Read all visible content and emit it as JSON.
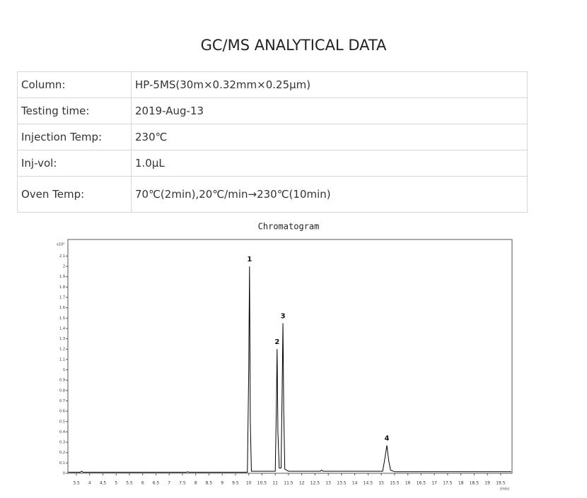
{
  "header": {
    "title": "GC/MS ANALYTICAL DATA"
  },
  "table": {
    "rows": [
      [
        "Column:",
        "HP-5MS(30m×0.32mm×0.25μm)"
      ],
      [
        "Testing time:",
        "2019-Aug-13"
      ],
      [
        "Injection Temp:",
        "230℃"
      ],
      [
        "Inj-vol:",
        "1.0μL"
      ],
      [
        "Oven Temp:",
        "70℃(2min),20℃/min→230℃(10min)"
      ]
    ]
  },
  "chart_data": {
    "type": "line",
    "title": "Chromatogram",
    "y_unit": "x10⁶",
    "x_unit": "(min)",
    "color": "#000000",
    "xlim": [
      3.18,
      19.93
    ],
    "ylim": [
      0,
      2.26
    ],
    "xticks": [
      3.5,
      4,
      4.5,
      5,
      5.5,
      6,
      6.5,
      7,
      7.5,
      8,
      8.5,
      9,
      9.5,
      10,
      10.5,
      11,
      11.5,
      12,
      12.5,
      13,
      13.5,
      14,
      14.5,
      15,
      15.5,
      16,
      16.5,
      17,
      17.5,
      18,
      18.5,
      19,
      19.5
    ],
    "yticks": [
      0,
      0.1,
      0.2,
      0.3,
      0.4,
      0.5,
      0.6,
      0.7,
      0.8,
      0.9,
      1,
      1.1,
      1.2,
      1.3,
      1.4,
      1.5,
      1.6,
      1.7,
      1.8,
      1.9,
      2,
      2.1
    ],
    "x": [
      3.2,
      3.65,
      3.7,
      3.75,
      7.65,
      7.7,
      7.75,
      9.95,
      10.0,
      10.03,
      10.06,
      10.1,
      11.0,
      11.04,
      11.07,
      11.1,
      11.15,
      11.22,
      11.26,
      11.29,
      11.32,
      11.36,
      11.5,
      12.7,
      12.75,
      12.8,
      15.05,
      15.12,
      15.21,
      15.28,
      15.35,
      15.5,
      19.9
    ],
    "values": [
      0.01,
      0.01,
      0.02,
      0.01,
      0.01,
      0.015,
      0.01,
      0.01,
      1.0,
      2.0,
      0.5,
      0.02,
      0.02,
      0.6,
      1.2,
      0.4,
      0.05,
      0.05,
      0.8,
      1.45,
      0.6,
      0.04,
      0.02,
      0.02,
      0.03,
      0.02,
      0.02,
      0.12,
      0.27,
      0.12,
      0.03,
      0.015,
      0.015
    ],
    "annotations": [
      {
        "text": "1",
        "x": 10.03,
        "y": 2.0
      },
      {
        "text": "2",
        "x": 11.07,
        "y": 1.2
      },
      {
        "text": "3",
        "x": 11.29,
        "y": 1.45
      },
      {
        "text": "4",
        "x": 15.21,
        "y": 0.27
      }
    ]
  }
}
